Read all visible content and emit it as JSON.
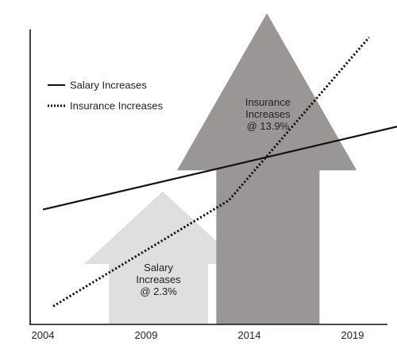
{
  "chart_data": {
    "type": "line",
    "x_ticks": [
      "2004",
      "2009",
      "2014",
      "2019"
    ],
    "xlim": [
      2004,
      2019
    ],
    "ylim": [
      0,
      100
    ],
    "grid": false,
    "legend_position": "top-left",
    "series": [
      {
        "name": "Salary Increases",
        "style": "solid",
        "color": "#111111",
        "points": [
          {
            "x": 2004,
            "y": 38
          },
          {
            "x": 2021.5,
            "y": 66
          }
        ]
      },
      {
        "name": "Insurance Increases",
        "style": "dotted",
        "color": "#111111",
        "points": [
          {
            "x": 2004.5,
            "y": 6
          },
          {
            "x": 2013,
            "y": 41
          },
          {
            "x": 2019.8,
            "y": 95
          }
        ]
      }
    ],
    "annotations": [
      {
        "id": "salary-arrow",
        "lines": [
          "Salary",
          "Increases",
          "@ 2.3%"
        ],
        "color": "#e0dfdf",
        "x_range": [
          2007.2,
          2012.0
        ],
        "stem_top": 20,
        "head_base": 20,
        "head_tip": 44,
        "head_span": [
          2006.0,
          2013.6
        ]
      },
      {
        "id": "insurance-arrow",
        "lines": [
          "Insurance",
          "Increases",
          "@ 13.9%"
        ],
        "color": "#9a9696",
        "x_range": [
          2012.4,
          2017.4
        ],
        "stem_top": 51,
        "head_base": 51,
        "head_tip": 103,
        "head_span": [
          2010.5,
          2019.2
        ]
      }
    ]
  }
}
